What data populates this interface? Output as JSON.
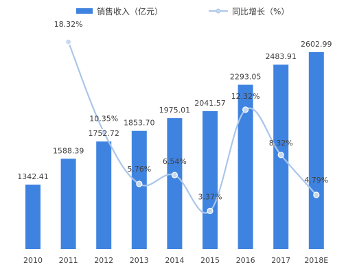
{
  "chart_data": {
    "type": "bar",
    "categories": [
      "2010",
      "2011",
      "2012",
      "2013",
      "2014",
      "2015",
      "2016",
      "2017",
      "2018E"
    ],
    "series": [
      {
        "name": "销售收入（亿元）",
        "kind": "bar",
        "values": [
          1342.41,
          1588.39,
          1752.72,
          1853.7,
          1975.01,
          2041.57,
          2293.05,
          2483.91,
          2602.99
        ],
        "labels": [
          "1342.41",
          "1588.39",
          "1752.72",
          "1853.70",
          "1975.01",
          "2041.57",
          "2293.05",
          "2483.91",
          "2602.99"
        ],
        "color": "#3f83e0"
      },
      {
        "name": "同比增长（%）",
        "kind": "line",
        "smooth": true,
        "values": [
          null,
          18.32,
          10.35,
          5.76,
          6.54,
          3.37,
          12.32,
          8.32,
          4.79
        ],
        "labels": [
          "",
          "18.32%",
          "10.35%",
          "5.76%",
          "6.54%",
          "3.37%",
          "12.32%",
          "8.32%",
          "4.79%"
        ],
        "color": "#aac6ea"
      }
    ],
    "legend_position": "top",
    "grid": false
  }
}
